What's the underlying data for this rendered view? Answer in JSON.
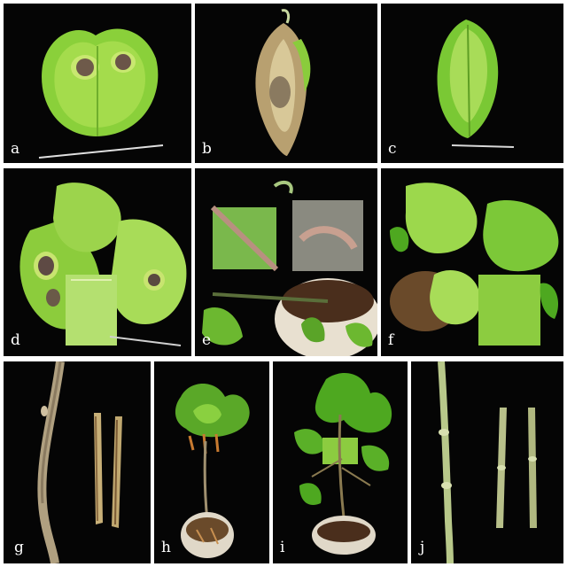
{
  "panels": {
    "a": {
      "label": "a"
    },
    "b": {
      "label": "b"
    },
    "c": {
      "label": "c"
    },
    "d": {
      "label": "d"
    },
    "e": {
      "label": "e"
    },
    "f": {
      "label": "f"
    },
    "g": {
      "label": "g"
    },
    "h": {
      "label": "h"
    },
    "i": {
      "label": "i"
    },
    "j": {
      "label": "j"
    }
  },
  "colors": {
    "background": "#050505",
    "leaf_green": "#8ad03a",
    "leaf_light": "#c8e870",
    "lesion_dark": "#6a5a48",
    "stem_brown": "#a08a62",
    "soil": "#4a2e1c",
    "pot": "#e8e0d0"
  }
}
